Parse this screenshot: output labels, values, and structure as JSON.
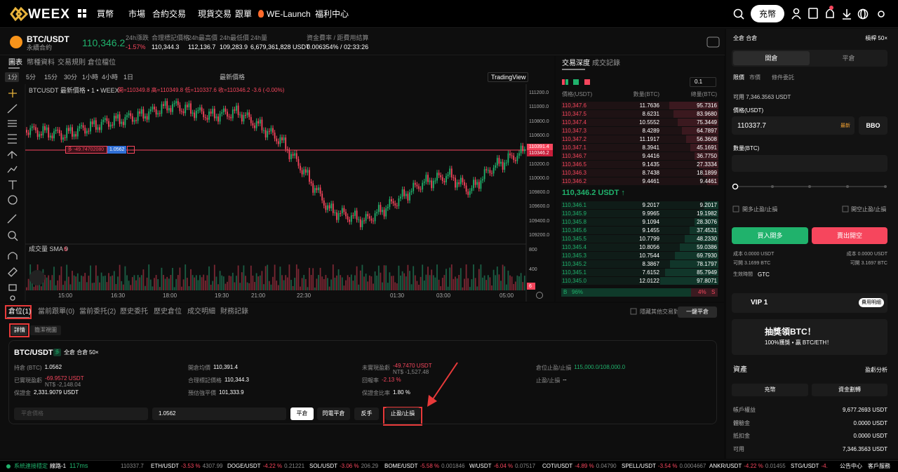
{
  "header": {
    "logo": "WEEX",
    "nav": [
      "買幣",
      "市場",
      "合約交易",
      "現貨交易",
      "跟單",
      "WE-Launch",
      "福利中心"
    ],
    "deposit": "充幣"
  },
  "ticker": {
    "symbol": "BTC/USDT",
    "contract": "永續合約",
    "price": "110,346.2",
    "stats": [
      {
        "label": "24h漲跌",
        "value": "-1.57%"
      },
      {
        "label": "合理標記價格",
        "value": "110,344.3"
      },
      {
        "label": "24h最高價",
        "value": "112,136.7"
      },
      {
        "label": "24h最低價",
        "value": "109,283.9"
      },
      {
        "label": "24h量",
        "value": "6,679,361,828 USDT"
      },
      {
        "label": "資金費率 / 距費用結算",
        "value": "0.006354% / 02:33:26"
      }
    ]
  },
  "chart": {
    "tabs": [
      "圖表",
      "幣種資料",
      "交易規則",
      "倉位檔位"
    ],
    "intervals": [
      "1分",
      "5分",
      "15分",
      "30分",
      "1小時",
      "4小時",
      "1日"
    ],
    "price_type": "最新價格",
    "provider": "TradingView",
    "legend": "BTCUSDT 最新價格 • 1 • WEEX",
    "ohlc": "開=110349.8 高=110349.8 低=110337.6 收=110346.2 -3.6 (-0.00%)",
    "price_axis": [
      "111200.0",
      "111000.0",
      "110800.0",
      "110600.0",
      "110400.0",
      "110200.0",
      "110000.0",
      "109800.0",
      "109600.0",
      "109400.0",
      "109200.0"
    ],
    "price_tags": [
      "110391.4",
      "110346.2"
    ],
    "position_line": {
      "side_pnl": "多 -49.74702080",
      "size": "1.0562"
    },
    "volume_label": "成交量 SMA 9",
    "volume_value": "6",
    "volume_axis": [
      "800",
      "400",
      "6"
    ],
    "time_axis": [
      "15:00",
      "16:30",
      "18:00",
      "19:30",
      "21:00",
      "22:30",
      "01:30",
      "03:00",
      "05:00"
    ]
  },
  "order_book": {
    "tabs": [
      "交易深度",
      "成交記錄"
    ],
    "precision": "0.1",
    "headers": [
      "價格(USDT)",
      "數量(BTC)",
      "總量(BTC)"
    ],
    "asks": [
      [
        "110,347.6",
        "11.7636",
        "95.7316"
      ],
      [
        "110,347.5",
        "8.6231",
        "83.9680"
      ],
      [
        "110,347.4",
        "10.5552",
        "75.3449"
      ],
      [
        "110,347.3",
        "8.4289",
        "64.7897"
      ],
      [
        "110,347.2",
        "11.1917",
        "56.3608"
      ],
      [
        "110,347.1",
        "8.3941",
        "45.1691"
      ],
      [
        "110,346.7",
        "9.4416",
        "36.7750"
      ],
      [
        "110,346.5",
        "9.1435",
        "27.3334"
      ],
      [
        "110,346.3",
        "8.7438",
        "18.1899"
      ],
      [
        "110,346.2",
        "9.4461",
        "9.4461"
      ]
    ],
    "mid": "110,346.2 USDT ↑",
    "bids": [
      [
        "110,346.1",
        "9.2017",
        "9.2017"
      ],
      [
        "110,345.9",
        "9.9965",
        "19.1982"
      ],
      [
        "110,345.8",
        "9.1094",
        "28.3076"
      ],
      [
        "110,345.6",
        "9.1455",
        "37.4531"
      ],
      [
        "110,345.5",
        "10.7799",
        "48.2330"
      ],
      [
        "110,345.4",
        "10.8056",
        "59.0386"
      ],
      [
        "110,345.3",
        "10.7544",
        "69.7930"
      ],
      [
        "110,345.2",
        "8.3867",
        "78.1797"
      ],
      [
        "110,345.1",
        "7.6152",
        "85.7949"
      ],
      [
        "110,345.0",
        "12.0122",
        "97.8071"
      ]
    ],
    "ratio": {
      "buy_tag": "B",
      "buy": "96%",
      "sell": "4%",
      "sell_tag": "S"
    }
  },
  "positions": {
    "tabs": [
      "倉位(1)",
      "當前跟單(0)",
      "當前委托(2)",
      "歷史委托",
      "歷史倉位",
      "成交明細",
      "財務記錄"
    ],
    "hide_others": "隱藏其他交易對",
    "close_all": "一鍵平倉",
    "views": [
      "詳情",
      "簡潔視圖"
    ],
    "card": {
      "symbol": "BTC/USDT",
      "side": "多",
      "mode": "全倉 合倉",
      "leverage": "50×",
      "fields": [
        {
          "label": "持倉 (BTC)",
          "value": "1.0562"
        },
        {
          "label": "開倉均價",
          "value": "110,391.4"
        },
        {
          "label": "未實現盈虧",
          "value": "-49.7470 USDT",
          "sub": "NT$ -1,527.48"
        },
        {
          "label": "倉位止盈/止損",
          "value": "115,000.0/108,000.0"
        },
        {
          "label": "已實現盈虧",
          "value": "-69.9572 USDT",
          "sub": "NT$ -2,148.04"
        },
        {
          "label": "合理標記價格",
          "value": "110,344.3"
        },
        {
          "label": "回報率",
          "value": "-2.13 %"
        },
        {
          "label": "止盈/止損",
          "value": "--"
        },
        {
          "label": "保證金",
          "value": "2,331.9079 USDT"
        },
        {
          "label": "預估強平價",
          "value": "101,333.9"
        },
        {
          "label": "保證金比率",
          "value": "1.80 %"
        }
      ],
      "price_placeholder": "平倉價格",
      "amount": "1.0562",
      "buttons": [
        "平倉",
        "閃電平倉",
        "反手",
        "止盈/止損"
      ]
    }
  },
  "order_panel": {
    "mode": "全倉 合倉",
    "leverage": "槓桿 50×",
    "tabs": [
      "開倉",
      "平倉"
    ],
    "order_types": [
      "限價",
      "市價",
      "條件委託"
    ],
    "available": "可用 7,346.3563 USDT",
    "price_label": "價格(USDT)",
    "price": "110337.7",
    "latest": "最新",
    "bbo": "BBO",
    "qty_label": "數量(BTC)",
    "tp_sl_long": "開多止盈/止損",
    "tp_sl_short": "開空止盈/止損",
    "buy": "買入開多",
    "sell": "賣出開空",
    "cost_long": "成本 0.0000 USDT",
    "cost_short": "成本 0.0000 USDT",
    "max_long": "可開 3.1699 BTC",
    "max_short": "可開 3.1697 BTC",
    "tif_label": "生效時間",
    "tif": "GTC"
  },
  "vip": {
    "level": "VIP 1",
    "fees": "費用明細"
  },
  "promo": {
    "title": "抽獎領BTC！",
    "subtitle": "100%獲獎 • 贏 BTC/ETH！"
  },
  "assets": {
    "title": "資產",
    "analysis": "盈虧分析",
    "buttons": [
      "充幣",
      "資金劃轉"
    ],
    "rows": [
      {
        "label": "帳戶權益",
        "value": "9,677.2693 USDT"
      },
      {
        "label": "體驗金",
        "value": "0.0000 USDT"
      },
      {
        "label": "抵扣金",
        "value": "0.0000 USDT"
      },
      {
        "label": "可用",
        "value": "7,346.3563 USDT"
      }
    ]
  },
  "footer": {
    "status": "系統連接穩定",
    "line": "線路-1",
    "latency": "117ms",
    "first_price": "110337.7",
    "tickers": [
      {
        "symbol": "ETH/USDT",
        "change": "-3.53 %",
        "price": "4307.99"
      },
      {
        "symbol": "DOGE/USDT",
        "change": "-4.22 %",
        "price": "0.21221"
      },
      {
        "symbol": "SOL/USDT",
        "change": "-3.06 %",
        "price": "206.29"
      },
      {
        "symbol": "BOME/USDT",
        "change": "-5.58 %",
        "price": "0.001846"
      },
      {
        "symbol": "W/USDT",
        "change": "-6.04 %",
        "price": "0.07517"
      },
      {
        "symbol": "COTI/USDT",
        "change": "-4.89 %",
        "price": "0.04790"
      },
      {
        "symbol": "SPELL/USDT",
        "change": "-3.54 %",
        "price": "0.0004667"
      },
      {
        "symbol": "ANKR/USDT",
        "change": "-4.22 %",
        "price": "0.01455"
      },
      {
        "symbol": "STG/USDT",
        "change": "-4.",
        "price": ""
      }
    ],
    "announcements": "公告中心",
    "support": "客戶服務"
  }
}
